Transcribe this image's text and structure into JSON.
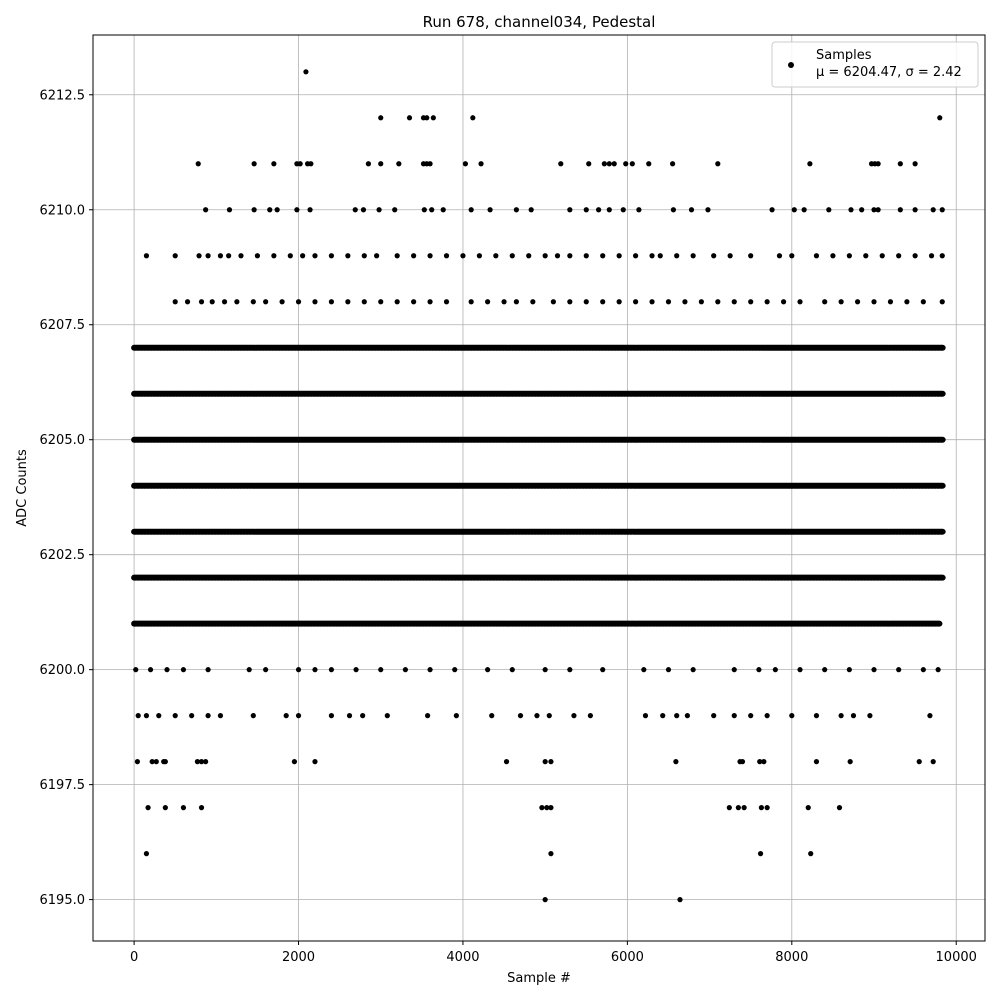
{
  "chart_data": {
    "type": "scatter",
    "title": "Run 678, channel034, Pedestal",
    "xlabel": "Sample #",
    "ylabel": "ADC Counts",
    "xlim": [
      -500,
      10350
    ],
    "ylim": [
      6194.1,
      6213.8
    ],
    "xticks": [
      0,
      2000,
      4000,
      6000,
      8000,
      10000
    ],
    "xtick_labels": [
      "0",
      "2000",
      "4000",
      "6000",
      "8000",
      "10000"
    ],
    "yticks": [
      6195.0,
      6197.5,
      6200.0,
      6202.5,
      6205.0,
      6207.5,
      6210.0,
      6212.5
    ],
    "ytick_labels": [
      "6195.0",
      "6197.5",
      "6200.0",
      "6202.5",
      "6205.0",
      "6207.5",
      "6210.0",
      "6212.5"
    ],
    "grid": true,
    "legend_position": "top-right",
    "legend": {
      "series_name": "Samples",
      "stats_prefix": "μ = 6204.47, ",
      "stats_suffix": "σ = 2.42"
    },
    "mean": 6204.47,
    "sigma": 2.42,
    "marker_color": "#000000",
    "series": [
      {
        "name": "Samples",
        "points": [
          [
            2090,
            6213
          ],
          [
            3000,
            6212
          ],
          [
            3350,
            6212
          ],
          [
            3520,
            6212
          ],
          [
            3560,
            6212
          ],
          [
            3640,
            6212
          ],
          [
            4120,
            6212
          ],
          [
            9800,
            6212
          ],
          [
            780,
            6211
          ],
          [
            1460,
            6211
          ],
          [
            1700,
            6211
          ],
          [
            1980,
            6211
          ],
          [
            2020,
            6211
          ],
          [
            2110,
            6211
          ],
          [
            2150,
            6211
          ],
          [
            2850,
            6211
          ],
          [
            3000,
            6211
          ],
          [
            3220,
            6211
          ],
          [
            3520,
            6211
          ],
          [
            3560,
            6211
          ],
          [
            3600,
            6211
          ],
          [
            4030,
            6211
          ],
          [
            4220,
            6211
          ],
          [
            5190,
            6211
          ],
          [
            5530,
            6211
          ],
          [
            5720,
            6211
          ],
          [
            5780,
            6211
          ],
          [
            5840,
            6211
          ],
          [
            5980,
            6211
          ],
          [
            6060,
            6211
          ],
          [
            6260,
            6211
          ],
          [
            6550,
            6211
          ],
          [
            7100,
            6211
          ],
          [
            8220,
            6211
          ],
          [
            8970,
            6211
          ],
          [
            9010,
            6211
          ],
          [
            9050,
            6211
          ],
          [
            9320,
            6211
          ],
          [
            9500,
            6211
          ],
          [
            870,
            6210
          ],
          [
            1160,
            6210
          ],
          [
            1460,
            6210
          ],
          [
            1650,
            6210
          ],
          [
            1740,
            6210
          ],
          [
            1980,
            6210
          ],
          [
            2140,
            6210
          ],
          [
            2690,
            6210
          ],
          [
            2790,
            6210
          ],
          [
            2980,
            6210
          ],
          [
            3170,
            6210
          ],
          [
            3530,
            6210
          ],
          [
            3620,
            6210
          ],
          [
            3760,
            6210
          ],
          [
            4100,
            6210
          ],
          [
            4330,
            6210
          ],
          [
            4650,
            6210
          ],
          [
            4830,
            6210
          ],
          [
            5300,
            6210
          ],
          [
            5500,
            6210
          ],
          [
            5650,
            6210
          ],
          [
            5780,
            6210
          ],
          [
            5950,
            6210
          ],
          [
            6140,
            6210
          ],
          [
            6560,
            6210
          ],
          [
            6780,
            6210
          ],
          [
            6980,
            6210
          ],
          [
            7760,
            6210
          ],
          [
            8030,
            6210
          ],
          [
            8150,
            6210
          ],
          [
            8450,
            6210
          ],
          [
            8720,
            6210
          ],
          [
            8850,
            6210
          ],
          [
            9000,
            6210
          ],
          [
            9050,
            6210
          ],
          [
            9320,
            6210
          ],
          [
            9500,
            6210
          ],
          [
            9720,
            6210
          ],
          [
            9830,
            6210
          ],
          [
            150,
            6209
          ],
          [
            500,
            6209
          ],
          [
            790,
            6209
          ],
          [
            900,
            6209
          ],
          [
            1050,
            6209
          ],
          [
            1150,
            6209
          ],
          [
            1300,
            6209
          ],
          [
            1500,
            6209
          ],
          [
            1700,
            6209
          ],
          [
            1900,
            6209
          ],
          [
            2050,
            6209
          ],
          [
            2200,
            6209
          ],
          [
            2400,
            6209
          ],
          [
            2600,
            6209
          ],
          [
            2800,
            6209
          ],
          [
            2950,
            6209
          ],
          [
            3200,
            6209
          ],
          [
            3400,
            6209
          ],
          [
            3600,
            6209
          ],
          [
            3800,
            6209
          ],
          [
            4000,
            6209
          ],
          [
            4200,
            6209
          ],
          [
            4400,
            6209
          ],
          [
            4600,
            6209
          ],
          [
            4800,
            6209
          ],
          [
            5000,
            6209
          ],
          [
            5150,
            6209
          ],
          [
            5300,
            6209
          ],
          [
            5500,
            6209
          ],
          [
            5700,
            6209
          ],
          [
            5900,
            6209
          ],
          [
            6100,
            6209
          ],
          [
            6300,
            6209
          ],
          [
            6400,
            6209
          ],
          [
            6600,
            6209
          ],
          [
            6800,
            6209
          ],
          [
            7050,
            6209
          ],
          [
            7250,
            6209
          ],
          [
            7500,
            6209
          ],
          [
            7850,
            6209
          ],
          [
            8000,
            6209
          ],
          [
            8300,
            6209
          ],
          [
            8500,
            6209
          ],
          [
            8700,
            6209
          ],
          [
            8900,
            6209
          ],
          [
            9100,
            6209
          ],
          [
            9300,
            6209
          ],
          [
            9500,
            6209
          ],
          [
            9700,
            6209
          ],
          [
            9830,
            6209
          ],
          [
            500,
            6208
          ],
          [
            650,
            6208
          ],
          [
            820,
            6208
          ],
          [
            950,
            6208
          ],
          [
            1100,
            6208
          ],
          [
            1250,
            6208
          ],
          [
            1450,
            6208
          ],
          [
            1600,
            6208
          ],
          [
            1800,
            6208
          ],
          [
            2000,
            6208
          ],
          [
            2200,
            6208
          ],
          [
            2400,
            6208
          ],
          [
            2600,
            6208
          ],
          [
            2800,
            6208
          ],
          [
            3000,
            6208
          ],
          [
            3200,
            6208
          ],
          [
            3400,
            6208
          ],
          [
            3600,
            6208
          ],
          [
            3800,
            6208
          ],
          [
            4100,
            6208
          ],
          [
            4300,
            6208
          ],
          [
            4500,
            6208
          ],
          [
            4650,
            6208
          ],
          [
            4850,
            6208
          ],
          [
            5100,
            6208
          ],
          [
            5300,
            6208
          ],
          [
            5500,
            6208
          ],
          [
            5700,
            6208
          ],
          [
            5900,
            6208
          ],
          [
            6100,
            6208
          ],
          [
            6300,
            6208
          ],
          [
            6500,
            6208
          ],
          [
            6700,
            6208
          ],
          [
            6900,
            6208
          ],
          [
            7100,
            6208
          ],
          [
            7300,
            6208
          ],
          [
            7500,
            6208
          ],
          [
            7700,
            6208
          ],
          [
            7900,
            6208
          ],
          [
            8100,
            6208
          ],
          [
            8400,
            6208
          ],
          [
            8600,
            6208
          ],
          [
            8800,
            6208
          ],
          [
            9000,
            6208
          ],
          [
            9200,
            6208
          ],
          [
            9400,
            6208
          ],
          [
            9600,
            6208
          ],
          [
            9830,
            6208
          ],
          [
            150,
            6196
          ],
          [
            5070,
            6196
          ],
          [
            7620,
            6196
          ],
          [
            8230,
            6196
          ],
          [
            5000,
            6195
          ],
          [
            6640,
            6195
          ],
          [
            170,
            6197
          ],
          [
            380,
            6197
          ],
          [
            600,
            6197
          ],
          [
            820,
            6197
          ],
          [
            4960,
            6197
          ],
          [
            5020,
            6197
          ],
          [
            5070,
            6197
          ],
          [
            7240,
            6197
          ],
          [
            7350,
            6197
          ],
          [
            7420,
            6197
          ],
          [
            7630,
            6197
          ],
          [
            7700,
            6197
          ],
          [
            8200,
            6197
          ],
          [
            8580,
            6197
          ],
          [
            40,
            6198
          ],
          [
            220,
            6198
          ],
          [
            270,
            6198
          ],
          [
            360,
            6198
          ],
          [
            380,
            6198
          ],
          [
            770,
            6198
          ],
          [
            820,
            6198
          ],
          [
            870,
            6198
          ],
          [
            1950,
            6198
          ],
          [
            2200,
            6198
          ],
          [
            4530,
            6198
          ],
          [
            5000,
            6198
          ],
          [
            5070,
            6198
          ],
          [
            6590,
            6198
          ],
          [
            7370,
            6198
          ],
          [
            7400,
            6198
          ],
          [
            7610,
            6198
          ],
          [
            7660,
            6198
          ],
          [
            8300,
            6198
          ],
          [
            8710,
            6198
          ],
          [
            9550,
            6198
          ],
          [
            9720,
            6198
          ],
          [
            50,
            6199
          ],
          [
            150,
            6199
          ],
          [
            300,
            6199
          ],
          [
            500,
            6199
          ],
          [
            700,
            6199
          ],
          [
            900,
            6199
          ],
          [
            1050,
            6199
          ],
          [
            1450,
            6199
          ],
          [
            1850,
            6199
          ],
          [
            2000,
            6199
          ],
          [
            2400,
            6199
          ],
          [
            2620,
            6199
          ],
          [
            2780,
            6199
          ],
          [
            3080,
            6199
          ],
          [
            3570,
            6199
          ],
          [
            3920,
            6199
          ],
          [
            4350,
            6199
          ],
          [
            4700,
            6199
          ],
          [
            4900,
            6199
          ],
          [
            5050,
            6199
          ],
          [
            5350,
            6199
          ],
          [
            5550,
            6199
          ],
          [
            6220,
            6199
          ],
          [
            6430,
            6199
          ],
          [
            6600,
            6199
          ],
          [
            6730,
            6199
          ],
          [
            7050,
            6199
          ],
          [
            7300,
            6199
          ],
          [
            7500,
            6199
          ],
          [
            7700,
            6199
          ],
          [
            8000,
            6199
          ],
          [
            8300,
            6199
          ],
          [
            8600,
            6199
          ],
          [
            8750,
            6199
          ],
          [
            8950,
            6199
          ],
          [
            9680,
            6199
          ],
          [
            20,
            6200
          ],
          [
            200,
            6200
          ],
          [
            400,
            6200
          ],
          [
            600,
            6200
          ],
          [
            900,
            6200
          ],
          [
            1400,
            6200
          ],
          [
            1600,
            6200
          ],
          [
            2000,
            6200
          ],
          [
            2200,
            6200
          ],
          [
            2400,
            6200
          ],
          [
            2700,
            6200
          ],
          [
            3000,
            6200
          ],
          [
            3300,
            6200
          ],
          [
            3600,
            6200
          ],
          [
            3900,
            6200
          ],
          [
            4300,
            6200
          ],
          [
            4600,
            6200
          ],
          [
            5000,
            6200
          ],
          [
            5300,
            6200
          ],
          [
            5700,
            6200
          ],
          [
            6200,
            6200
          ],
          [
            6500,
            6200
          ],
          [
            6800,
            6200
          ],
          [
            7300,
            6200
          ],
          [
            7600,
            6200
          ],
          [
            7800,
            6200
          ],
          [
            8100,
            6200
          ],
          [
            8400,
            6200
          ],
          [
            8700,
            6200
          ],
          [
            9000,
            6200
          ],
          [
            9300,
            6200
          ],
          [
            9600,
            6200
          ],
          [
            9780,
            6200
          ],
          [
            0,
            6201
          ],
          [
            5800,
            6201
          ],
          [
            9800,
            6201
          ],
          [
            0,
            6202
          ],
          [
            9840,
            6202
          ],
          [
            0,
            6203
          ],
          [
            9840,
            6203
          ],
          [
            0,
            6204
          ],
          [
            9840,
            6204
          ],
          [
            0,
            6205
          ],
          [
            9840,
            6205
          ],
          [
            0,
            6206
          ],
          [
            9840,
            6206
          ],
          [
            0,
            6207
          ],
          [
            9840,
            6207
          ]
        ],
        "bands": [
          [
            6201,
            0,
            9800
          ],
          [
            6202,
            0,
            9840
          ],
          [
            6203,
            0,
            9840
          ],
          [
            6204,
            0,
            9840
          ],
          [
            6205,
            0,
            9840
          ],
          [
            6206,
            0,
            9840
          ],
          [
            6207,
            0,
            9840
          ]
        ]
      }
    ]
  }
}
